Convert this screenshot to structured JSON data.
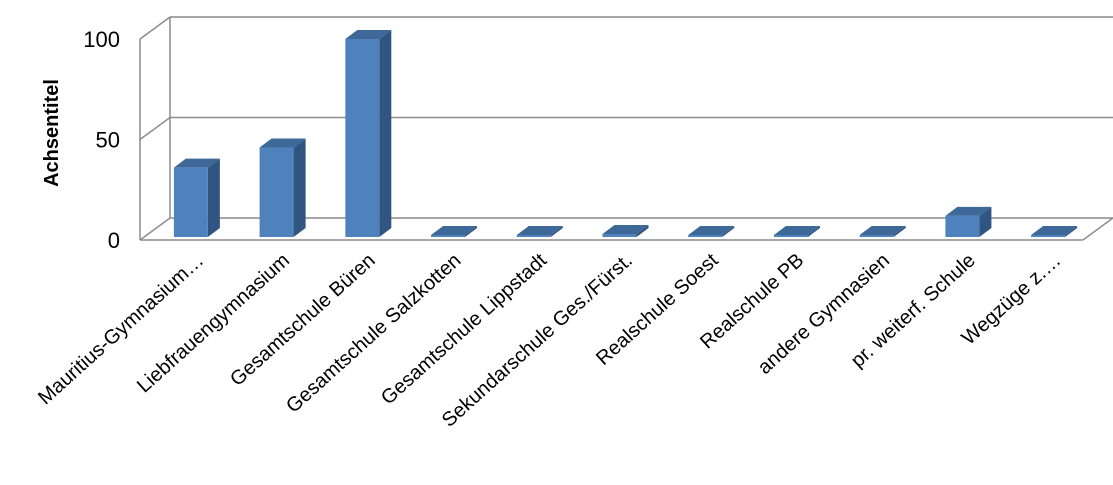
{
  "chart_data": {
    "type": "bar",
    "title": "",
    "xlabel": "",
    "ylabel": "Achsentitel",
    "ylim": [
      0,
      100
    ],
    "yticks": [
      0,
      50,
      100
    ],
    "grid": true,
    "legend": "none",
    "style": "3d-column",
    "categories": [
      "Mauritius-Gymnasium…",
      "Liebfrauengymnasium",
      "Gesamtschule Büren",
      "Gesamtschule Salzkotten",
      "Gesamtschule Lippstadt",
      "Sekundarschule Ges./Fürst.",
      "Realschule Soest",
      "Realschule PB",
      "andere Gymnasien",
      "pr. weiterf. Schule",
      "Wegzüge z.…"
    ],
    "values": [
      36,
      46,
      100,
      1,
      0,
      3,
      0,
      0,
      2,
      12,
      2
    ]
  },
  "colors": {
    "bar_front": "#4F81BD",
    "bar_side": "#2F5580",
    "bar_top": "#3D6898",
    "grid": "#8C8C8C",
    "axis": "#8C8C8C"
  }
}
